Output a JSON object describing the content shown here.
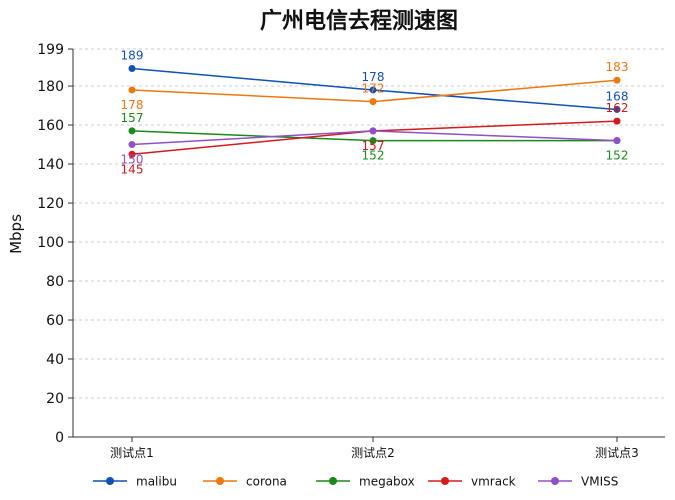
{
  "chart_data": {
    "type": "line",
    "title": "广州电信去程测速图",
    "xlabel": "",
    "ylabel": "Mbps",
    "categories": [
      "测试点1",
      "测试点2",
      "测试点3"
    ],
    "yticks": [
      0,
      20,
      40,
      60,
      80,
      100,
      120,
      140,
      160,
      180,
      199
    ],
    "ylim": [
      0,
      199
    ],
    "grid": true,
    "legend_position": "bottom",
    "series": [
      {
        "name": "malibu",
        "color": "#1150b5",
        "values": [
          189,
          178,
          168
        ]
      },
      {
        "name": "corona",
        "color": "#ee7711",
        "values": [
          178,
          172,
          183
        ]
      },
      {
        "name": "megabox",
        "color": "#1a8a1a",
        "values": [
          157,
          152,
          152
        ]
      },
      {
        "name": "vmrack",
        "color": "#d41a1a",
        "values": [
          145,
          157,
          162
        ]
      },
      {
        "name": "VMISS",
        "color": "#9050c8",
        "values": [
          150,
          157,
          152
        ]
      }
    ],
    "data_labels": [
      {
        "series": 0,
        "index": 0,
        "text": "189",
        "pos": "above"
      },
      {
        "series": 0,
        "index": 1,
        "text": "178",
        "pos": "above"
      },
      {
        "series": 0,
        "index": 2,
        "text": "168",
        "pos": "above"
      },
      {
        "series": 1,
        "index": 0,
        "text": "178",
        "pos": "below"
      },
      {
        "series": 1,
        "index": 1,
        "text": "172",
        "pos": "above"
      },
      {
        "series": 1,
        "index": 2,
        "text": "183",
        "pos": "above"
      },
      {
        "series": 2,
        "index": 0,
        "text": "157",
        "pos": "above"
      },
      {
        "series": 2,
        "index": 1,
        "text": "152",
        "pos": "below"
      },
      {
        "series": 2,
        "index": 2,
        "text": "152",
        "pos": "below"
      },
      {
        "series": 3,
        "index": 0,
        "text": "145",
        "pos": "below"
      },
      {
        "series": 3,
        "index": 1,
        "text": "157",
        "pos": "below"
      },
      {
        "series": 3,
        "index": 2,
        "text": "162",
        "pos": "above"
      },
      {
        "series": 4,
        "index": 0,
        "text": "150",
        "pos": "below"
      }
    ]
  }
}
